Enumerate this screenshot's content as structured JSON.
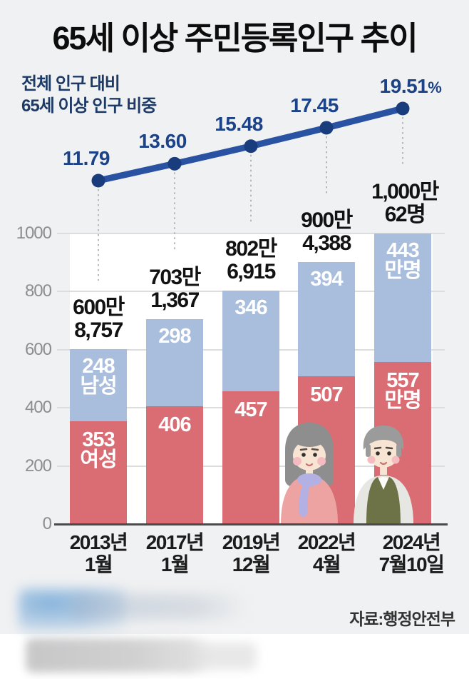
{
  "title": "65세 이상 주민등록인구 추이",
  "line_caption": [
    "전체 인구 대비",
    "65세 이상 인구 비중"
  ],
  "source": "자료:행정안전부",
  "colors": {
    "background": "#f0f1f2",
    "plot_panel": "#ffffff",
    "line": "#2a52a2",
    "line_point": "#183c7c",
    "pct_text": "#1c4288",
    "caption_text": "#1d3a66",
    "male_bar": "#a9bddc",
    "female_bar": "#da6d74",
    "bar_label_text": "#ffffff",
    "total_text": "#121212",
    "axis": "#4a4a4a",
    "gridline": "#dcdddf",
    "ytick_text": "#8b8e91",
    "xtick_text": "#1c1c1c"
  },
  "chart_data": {
    "type": "bar",
    "subtype": "stacked-bars-with-percentage-line",
    "title": "65세 이상 주민등록인구 추이",
    "categories": [
      "2013년 1월",
      "2017년 1월",
      "2019년 12월",
      "2022년 4월",
      "2024년 7월10일"
    ],
    "category_label_lines": [
      [
        "2013년",
        "1월"
      ],
      [
        "2017년",
        "1월"
      ],
      [
        "2019년",
        "12월"
      ],
      [
        "2022년",
        "4월"
      ],
      [
        "2024년",
        "7월10일"
      ]
    ],
    "series": [
      {
        "name": "남성",
        "unit": "만명",
        "stack_position": "top",
        "values": [
          248,
          298,
          346,
          394,
          443
        ],
        "bar_label_lines": [
          [
            "248",
            "남성"
          ],
          [
            "298"
          ],
          [
            "346"
          ],
          [
            "394"
          ],
          [
            "443",
            "만명"
          ]
        ]
      },
      {
        "name": "여성",
        "unit": "만명",
        "stack_position": "bottom",
        "values": [
          353,
          406,
          457,
          507,
          557
        ],
        "bar_label_lines": [
          [
            "353",
            "여성"
          ],
          [
            "406"
          ],
          [
            "457"
          ],
          [
            "507"
          ],
          [
            "557",
            "만명"
          ]
        ]
      }
    ],
    "total_label_lines": [
      [
        "600만",
        "8,757"
      ],
      [
        "703만",
        "1,367"
      ],
      [
        "802만",
        "6,915"
      ],
      [
        "900만",
        "4,388"
      ],
      [
        "1,000만",
        "62명"
      ]
    ],
    "line_series": {
      "name": "전체 인구 대비 65세 이상 인구 비중",
      "unit": "%",
      "values": [
        11.79,
        13.6,
        15.48,
        17.45,
        19.51
      ],
      "tick_labels": [
        "11.79",
        "13.60",
        "15.48",
        "17.45",
        "19.51"
      ]
    },
    "yticks": [
      0,
      200,
      400,
      600,
      800,
      1000
    ],
    "ylim": [
      0,
      1000
    ],
    "grid": true,
    "legend_position": "inside-first-bar"
  }
}
